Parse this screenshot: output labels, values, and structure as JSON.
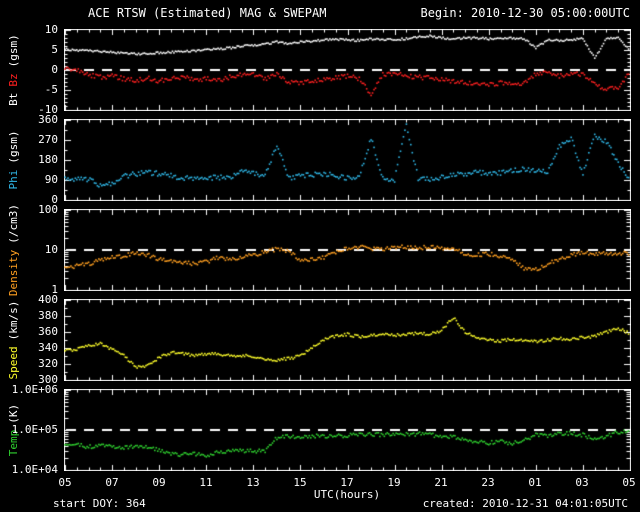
{
  "header": {
    "title": "ACE RTSW (Estimated) MAG & SWEPAM",
    "begin": "Begin: 2010-12-30 05:00:00UTC"
  },
  "footer": {
    "start_doy": "start DOY: 364",
    "created": "created: 2010-12-31 04:01:05UTC"
  },
  "colors": {
    "background": "#000000",
    "frame": "#ffffff",
    "bt": "#ffffff",
    "bz": "#ff2020",
    "phi": "#2fb8e8",
    "density": "#ff9f20",
    "speed": "#ffff2a",
    "temp": "#2fd12f"
  },
  "x_axis": {
    "label": "UTC(hours)",
    "range_hours": [
      5,
      29
    ],
    "tick_labels": [
      "05",
      "07",
      "09",
      "11",
      "13",
      "15",
      "17",
      "19",
      "21",
      "23",
      "01",
      "03",
      "05"
    ]
  },
  "chart_data": [
    {
      "type": "scatter",
      "name": "mag-bt-bz",
      "ylabel_parts": [
        {
          "text": "Bt",
          "color": "#ffffff"
        },
        {
          "text": "Bz",
          "color": "#ff2020"
        },
        {
          "text": "(gsm)",
          "color": "#ffffff"
        }
      ],
      "log": false,
      "ylim": [
        -10,
        10
      ],
      "yticks": [
        10,
        5,
        0,
        -5,
        -10
      ],
      "ytick_labels": [
        "10",
        "5",
        "0",
        "-5",
        "-10"
      ],
      "y_minor": 1,
      "dashed_value": 0,
      "x_start": 5,
      "x_step": 0.5,
      "series": [
        {
          "name": "Bt",
          "color": "#ffffff",
          "jitter": 1.0,
          "values": [
            5.2,
            5.0,
            4.8,
            4.6,
            4.5,
            4.2,
            4.0,
            4.2,
            4.3,
            4.5,
            4.6,
            4.8,
            5.0,
            5.3,
            5.5,
            6.0,
            6.2,
            6.5,
            7.0,
            6.6,
            7.0,
            7.2,
            7.5,
            7.7,
            7.5,
            7.4,
            7.8,
            7.5,
            7.6,
            7.8,
            8.2,
            8.5,
            8.0,
            7.8,
            8.0,
            8.0,
            7.8,
            8.0,
            8.0,
            7.8,
            5.5,
            7.5,
            7.4,
            7.6,
            7.8,
            3.0,
            7.8,
            8.0,
            4.8
          ]
        },
        {
          "name": "Bz",
          "color": "#ff2020",
          "jitter": 2.2,
          "values": [
            0.5,
            0.0,
            -1.2,
            -1.8,
            -1.5,
            -2.2,
            -2.6,
            -2.0,
            -2.8,
            -2.0,
            -1.8,
            -2.4,
            -2.2,
            -2.6,
            -1.8,
            -1.2,
            -1.0,
            -2.2,
            -0.8,
            -3.0,
            -3.2,
            -2.8,
            -2.4,
            -2.0,
            -1.5,
            -2.2,
            -6.2,
            -1.2,
            -0.8,
            -1.5,
            -1.8,
            -2.0,
            -2.4,
            -2.8,
            -3.2,
            -3.5,
            -3.8,
            -3.2,
            -3.6,
            -3.4,
            -1.0,
            -0.5,
            -1.5,
            -0.8,
            -1.2,
            -3.5,
            -4.8,
            -4.2,
            -0.5
          ]
        }
      ]
    },
    {
      "type": "scatter",
      "name": "phi",
      "ylabel_parts": [
        {
          "text": "Phi",
          "color": "#2fb8e8"
        },
        {
          "text": "(gsm)",
          "color": "#ffffff"
        }
      ],
      "log": false,
      "ylim": [
        0,
        360
      ],
      "yticks": [
        360,
        270,
        180,
        90,
        0
      ],
      "ytick_labels": [
        "360",
        "270",
        "180",
        "90",
        "0"
      ],
      "y_minor": 45,
      "dashed_value": null,
      "x_start": 5,
      "x_step": 0.5,
      "series": [
        {
          "name": "Phi",
          "color": "#2fb8e8",
          "jitter": 2.5,
          "values": [
            95,
            92,
            94,
            62,
            75,
            108,
            118,
            125,
            118,
            108,
            100,
            98,
            100,
            102,
            98,
            130,
            118,
            110,
            250,
            100,
            108,
            112,
            118,
            108,
            100,
            105,
            280,
            95,
            90,
            340,
            95,
            92,
            105,
            112,
            118,
            125,
            118,
            122,
            130,
            140,
            135,
            130,
            240,
            280,
            115,
            290,
            260,
            170,
            80
          ]
        }
      ]
    },
    {
      "type": "scatter",
      "name": "density",
      "ylabel_parts": [
        {
          "text": "Density",
          "color": "#ff9f20"
        },
        {
          "text": "(/cm3)",
          "color": "#ffffff"
        }
      ],
      "log": true,
      "ylim": [
        1,
        100
      ],
      "yticks": [
        100,
        10,
        1
      ],
      "ytick_labels": [
        "100",
        "10",
        "1"
      ],
      "dashed_value": 10,
      "x_start": 5,
      "x_step": 0.5,
      "series": [
        {
          "name": "Density",
          "color": "#ff9f20",
          "jitter": 2.0,
          "values": [
            3.5,
            4.0,
            4.5,
            5.5,
            6.5,
            7.0,
            8.5,
            7.5,
            6.0,
            5.5,
            5.0,
            4.5,
            5.0,
            6.5,
            6.0,
            6.5,
            7.5,
            9.0,
            10.5,
            9.5,
            5.5,
            6.0,
            6.5,
            9.0,
            11.0,
            12.0,
            11.0,
            10.5,
            11.5,
            12.0,
            11.0,
            12.0,
            11.5,
            10.5,
            8.0,
            7.5,
            8.0,
            7.0,
            5.5,
            3.5,
            3.2,
            4.5,
            6.0,
            7.5,
            8.5,
            8.0,
            8.5,
            8.0,
            8.5
          ]
        }
      ]
    },
    {
      "type": "scatter",
      "name": "speed",
      "ylabel_parts": [
        {
          "text": "Speed",
          "color": "#ffff2a"
        },
        {
          "text": "(km/s)",
          "color": "#ffffff"
        }
      ],
      "log": false,
      "ylim": [
        300,
        400
      ],
      "yticks": [
        400,
        380,
        360,
        340,
        320,
        300
      ],
      "ytick_labels": [
        "400",
        "380",
        "360",
        "340",
        "320",
        "300"
      ],
      "y_minor": 10,
      "dashed_value": null,
      "x_start": 5,
      "x_step": 0.5,
      "series": [
        {
          "name": "Speed",
          "color": "#ffff2a",
          "jitter": 1.5,
          "values": [
            337,
            338,
            343,
            345,
            338,
            330,
            316,
            318,
            328,
            334,
            333,
            331,
            333,
            332,
            330,
            331,
            329,
            326,
            325,
            327,
            330,
            340,
            350,
            355,
            357,
            354,
            356,
            358,
            356,
            357,
            358,
            357,
            362,
            378,
            360,
            352,
            350,
            349,
            351,
            350,
            348,
            350,
            352,
            351,
            353,
            355,
            360,
            365,
            358
          ]
        }
      ]
    },
    {
      "type": "scatter",
      "name": "temp",
      "ylabel_parts": [
        {
          "text": "Temp",
          "color": "#2fd12f"
        },
        {
          "text": "(K)",
          "color": "#ffffff"
        }
      ],
      "log": true,
      "ylim": [
        10000,
        1000000
      ],
      "yticks": [
        1000000,
        100000,
        10000
      ],
      "ytick_labels": [
        "1.0E+06",
        "1.0E+05",
        "1.0E+04"
      ],
      "dashed_value": 100000,
      "x_start": 5,
      "x_step": 0.5,
      "series": [
        {
          "name": "Temp",
          "color": "#2fd12f",
          "jitter": 2.0,
          "values": [
            40000,
            42000,
            38000,
            40000,
            39000,
            36000,
            38000,
            37000,
            32000,
            26000,
            24000,
            26000,
            23000,
            28000,
            30000,
            31000,
            29000,
            30000,
            65000,
            70000,
            68000,
            72000,
            70000,
            75000,
            72000,
            78000,
            80000,
            75000,
            82000,
            78000,
            80000,
            76000,
            70000,
            65000,
            60000,
            50000,
            48000,
            52000,
            46000,
            55000,
            75000,
            70000,
            80000,
            85000,
            75000,
            60000,
            70000,
            90000,
            95000
          ]
        }
      ]
    }
  ]
}
